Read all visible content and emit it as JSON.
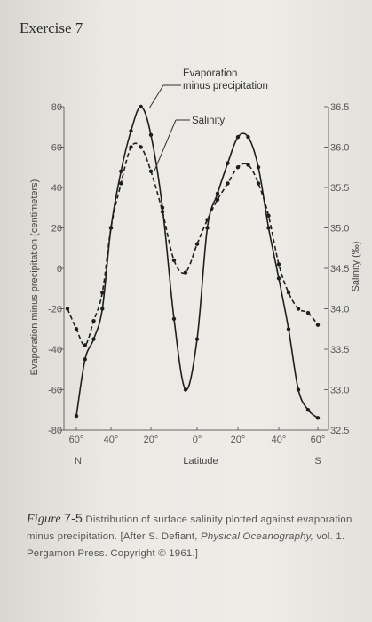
{
  "heading": "Exercise 7",
  "chart_data": {
    "type": "line",
    "xlabel": "Latitude",
    "ylabel_left": "Evaporation minus precipitation (centimeters)",
    "ylabel_right": "Salinity (‰)",
    "x_ticks": [
      "60°",
      "40°",
      "20°",
      "0°",
      "20°",
      "40°",
      "60°"
    ],
    "x_tick_values": [
      60,
      40,
      20,
      0,
      -20,
      -40,
      -60
    ],
    "x_end_labels": {
      "left": "N",
      "right": "S"
    },
    "xlim": [
      65,
      -60
    ],
    "y_left_ticks": [
      "80",
      "60",
      "40",
      "20",
      "0",
      "-20",
      "-40",
      "-60",
      "-80"
    ],
    "ylim_left": [
      -80,
      80
    ],
    "y_right_ticks": [
      "36.5",
      "36.0",
      "35.5",
      "35.0",
      "34.5",
      "34.0",
      "33.5",
      "33.0",
      "32.5"
    ],
    "ylim_right": [
      32.5,
      36.5
    ],
    "annotations": [
      "Evaporation\nminus precipitation",
      "Salinity"
    ],
    "series": [
      {
        "name": "Evaporation minus precipitation",
        "axis": "left",
        "style": "solid",
        "x": [
          60,
          55,
          50,
          45,
          40,
          35,
          30,
          25,
          20,
          15,
          10,
          5,
          0,
          -5,
          -10,
          -15,
          -20,
          -25,
          -30,
          -35,
          -40,
          -45,
          -50,
          -55,
          -60
        ],
        "y": [
          -73,
          -45,
          -35,
          -20,
          20,
          48,
          68,
          80,
          66,
          30,
          -25,
          -60,
          -35,
          20,
          37,
          52,
          65,
          65,
          50,
          20,
          -5,
          -30,
          -60,
          -70,
          -74
        ]
      },
      {
        "name": "Salinity",
        "axis": "right",
        "style": "dashed",
        "x": [
          65,
          60,
          55,
          50,
          45,
          40,
          35,
          30,
          25,
          20,
          15,
          10,
          5,
          0,
          -5,
          -10,
          -15,
          -20,
          -25,
          -30,
          -35,
          -40,
          -45,
          -50,
          -55,
          -60
        ],
        "y": [
          34.0,
          33.75,
          33.55,
          33.85,
          34.2,
          35.0,
          35.55,
          36.0,
          36.0,
          35.7,
          35.2,
          34.6,
          34.45,
          34.8,
          35.1,
          35.35,
          35.55,
          35.75,
          35.78,
          35.55,
          35.15,
          34.55,
          34.2,
          34.0,
          33.95,
          33.8
        ]
      }
    ]
  },
  "caption": {
    "figure_word": "Figure",
    "figure_number": "7-5",
    "text": "Distribution of surface salinity plotted against evaporation minus precipitation. [After S. Defiant,",
    "book_title": "Physical Oceanography,",
    "source": "vol. 1. Pergamon Press. Copyright ©",
    "year": "1961.]"
  }
}
